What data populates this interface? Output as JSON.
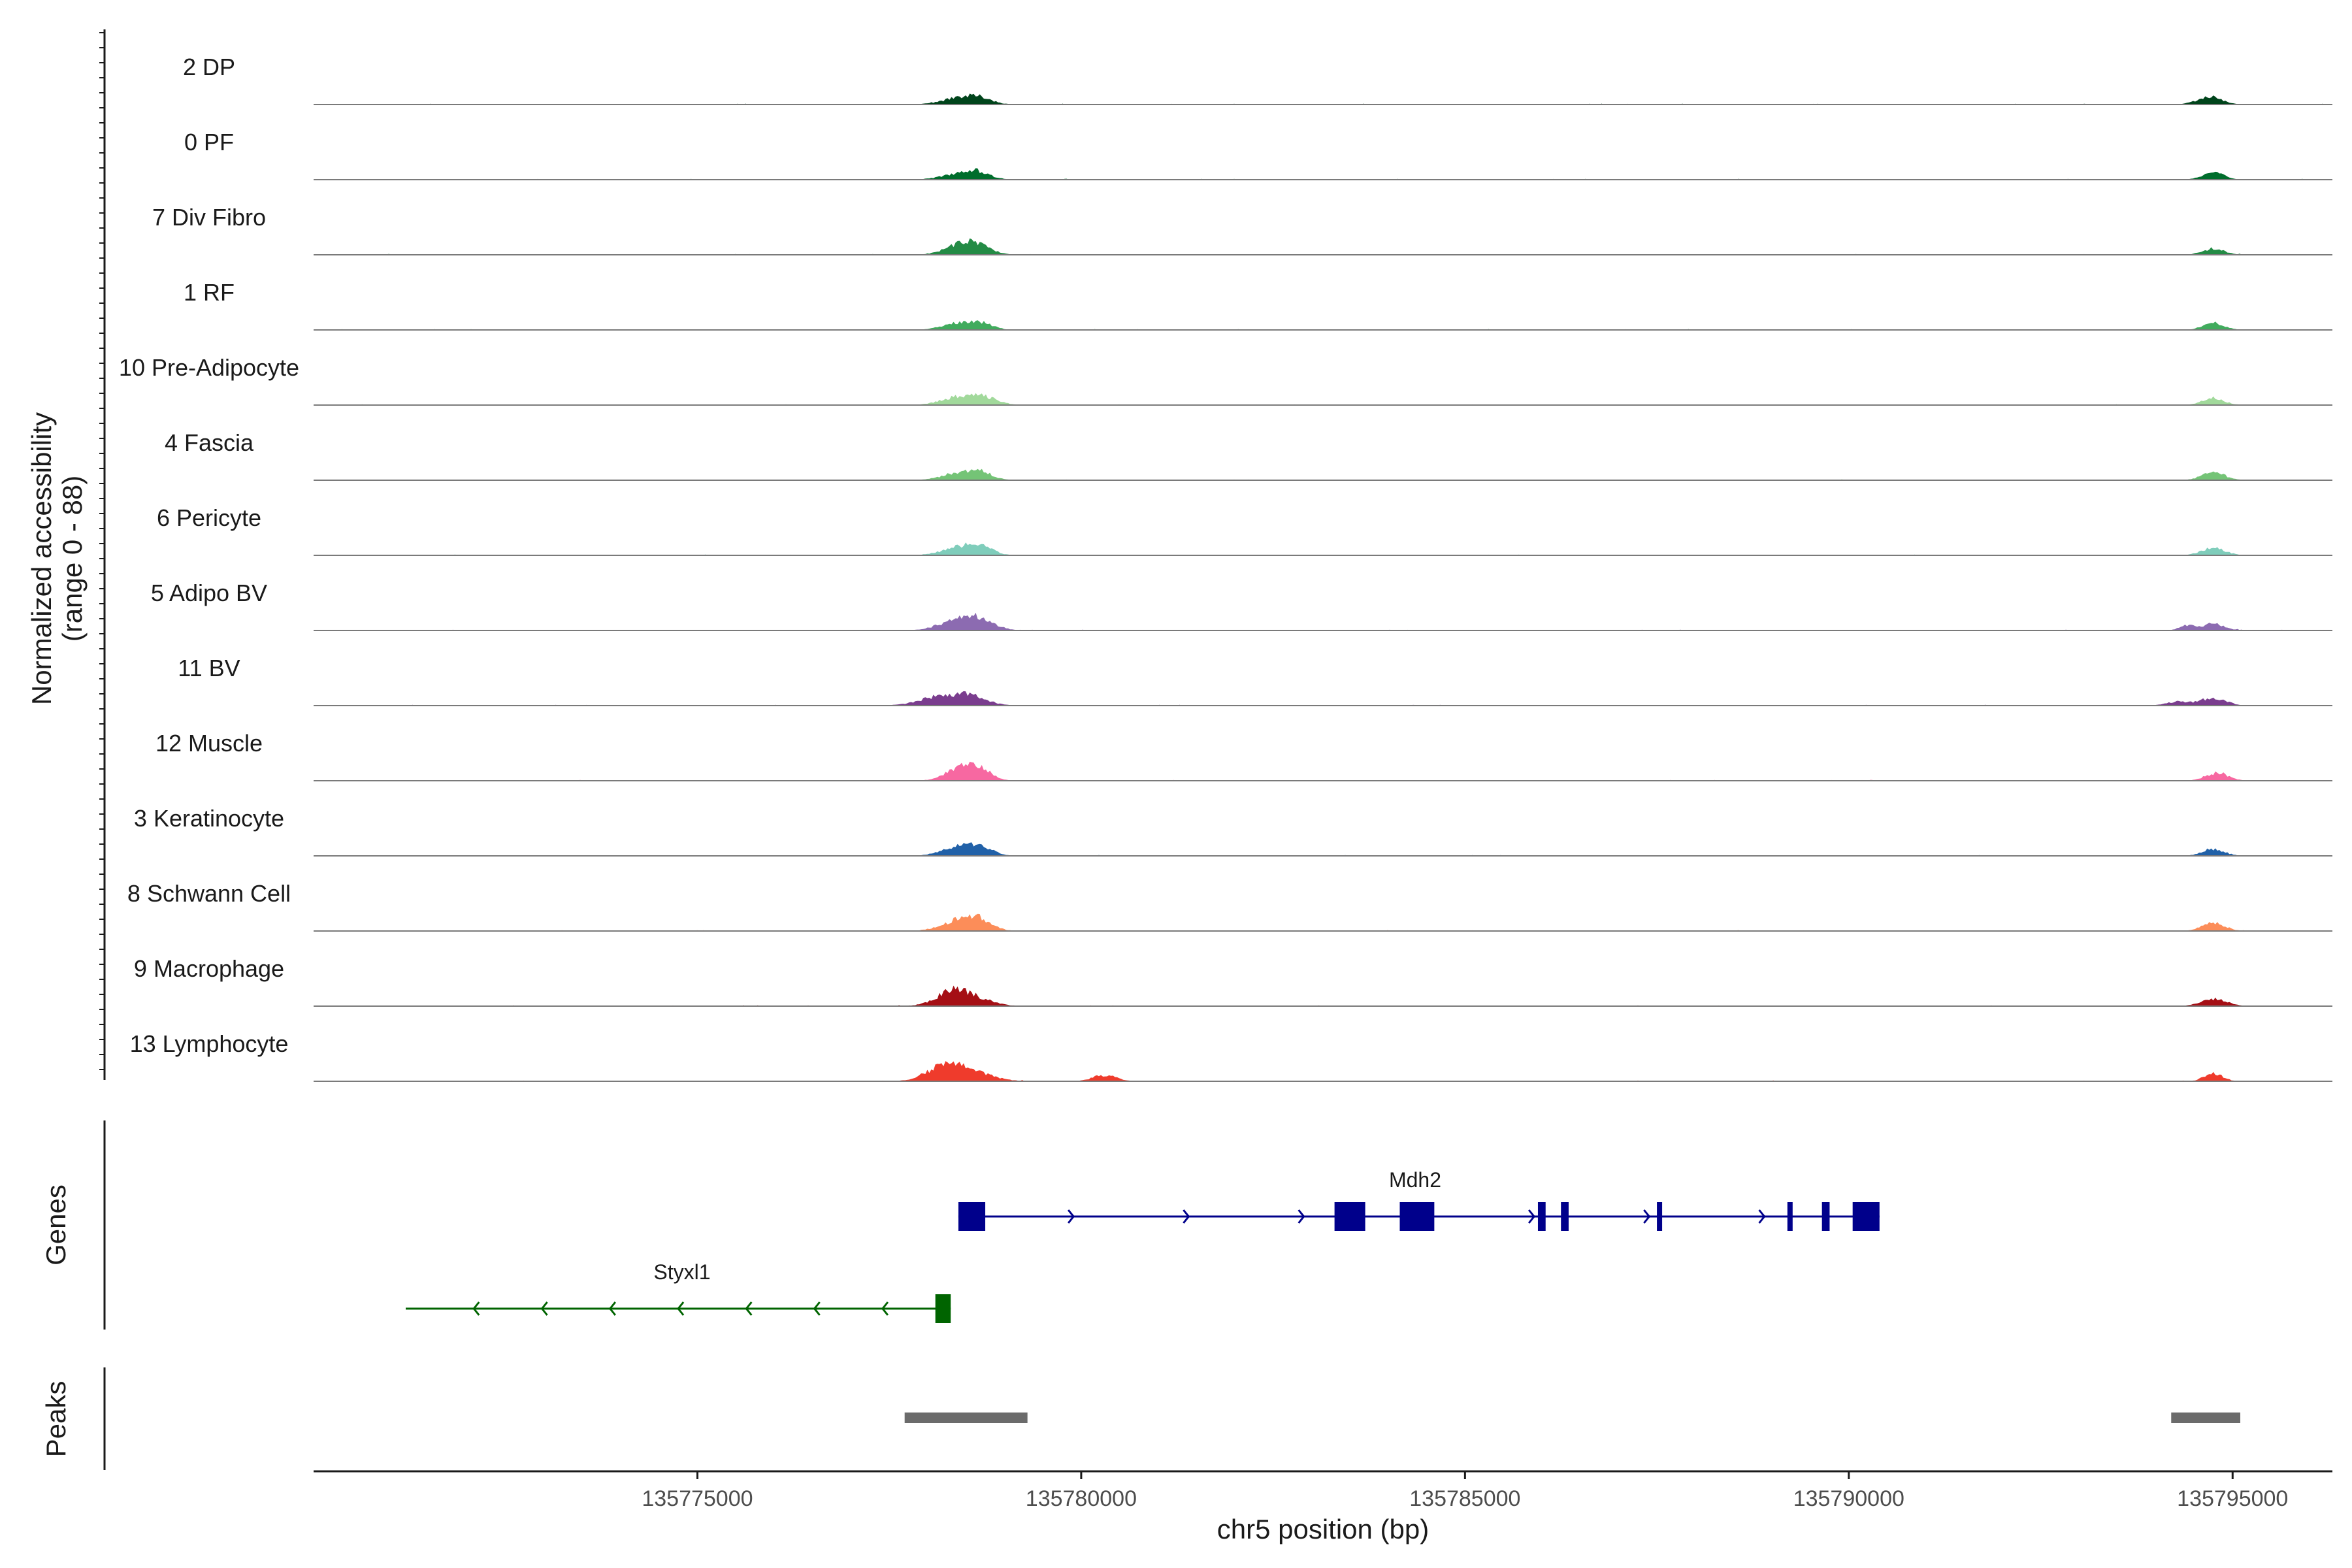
{
  "chart_data": {
    "type": "area",
    "title": "",
    "chromosome": "chr5",
    "xlabel": "chr5 position (bp)",
    "xlim": [
      135770000,
      135796300
    ],
    "xticks": [
      135775000,
      135780000,
      135785000,
      135790000,
      135795000
    ],
    "xtick_labels": [
      "135775000",
      "135780000",
      "135785000",
      "135790000",
      "135795000"
    ],
    "ylabel_line1": "Normalized accessibility",
    "ylabel_line2": "(range 0 - 88)",
    "ylim": [
      0,
      88
    ],
    "series": [
      {
        "name": "2 DP",
        "color": "#00441b",
        "peaks": [
          [
            135778450,
            9,
            240
          ],
          [
            135778700,
            5,
            150
          ],
          [
            135794700,
            10,
            160
          ]
        ]
      },
      {
        "name": "0 PF",
        "color": "#006d2c",
        "peaks": [
          [
            135778450,
            8,
            240
          ],
          [
            135778650,
            6,
            160
          ],
          [
            135794750,
            9,
            140
          ]
        ]
      },
      {
        "name": "7 Div Fibro",
        "color": "#238b45",
        "peaks": [
          [
            135778450,
            12,
            220
          ],
          [
            135778650,
            8,
            180
          ],
          [
            135794750,
            8,
            140
          ]
        ]
      },
      {
        "name": "1 RF",
        "color": "#41ab5d",
        "peaks": [
          [
            135778450,
            9,
            240
          ],
          [
            135778700,
            5,
            150
          ],
          [
            135794750,
            9,
            140
          ]
        ]
      },
      {
        "name": "10 Pre-Adipocyte",
        "color": "#a1d99b",
        "peaks": [
          [
            135778450,
            11,
            250
          ],
          [
            135778750,
            6,
            180
          ],
          [
            135794750,
            9,
            140
          ]
        ]
      },
      {
        "name": "4 Fascia",
        "color": "#74c476",
        "peaks": [
          [
            135778450,
            10,
            240
          ],
          [
            135778700,
            6,
            150
          ],
          [
            135794750,
            10,
            150
          ]
        ]
      },
      {
        "name": "6 Pericyte",
        "color": "#7fcdbb",
        "peaks": [
          [
            135778450,
            11,
            240
          ],
          [
            135778700,
            7,
            150
          ],
          [
            135794750,
            10,
            150
          ]
        ]
      },
      {
        "name": "5 Adipo BV",
        "color": "#8c6bb1",
        "peaks": [
          [
            135778450,
            15,
            260
          ],
          [
            135778700,
            8,
            180
          ],
          [
            135794400,
            6,
            100
          ],
          [
            135794750,
            9,
            140
          ]
        ]
      },
      {
        "name": "11 BV",
        "color": "#7a3d8e",
        "peaks": [
          [
            135778200,
            12,
            280
          ],
          [
            135778600,
            9,
            200
          ],
          [
            135794750,
            10,
            160
          ],
          [
            135794300,
            5,
            150
          ]
        ]
      },
      {
        "name": "12 Muscle",
        "color": "#f768a1",
        "peaks": [
          [
            135778450,
            18,
            200
          ],
          [
            135778700,
            10,
            150
          ],
          [
            135794800,
            10,
            150
          ]
        ]
      },
      {
        "name": "3 Keratinocyte",
        "color": "#2161a8",
        "peaks": [
          [
            135778450,
            12,
            240
          ],
          [
            135778700,
            7,
            150
          ],
          [
            135794750,
            9,
            140
          ]
        ]
      },
      {
        "name": "8 Schwann Cell",
        "color": "#fc8d59",
        "peaks": [
          [
            135778450,
            15,
            240
          ],
          [
            135778700,
            8,
            150
          ],
          [
            135794750,
            10,
            150
          ]
        ]
      },
      {
        "name": "9 Macrophage",
        "color": "#a50f15",
        "peaks": [
          [
            135778450,
            16,
            280
          ],
          [
            135778300,
            8,
            150
          ],
          [
            135794750,
            9,
            170
          ]
        ]
      },
      {
        "name": "13 Lymphocyte",
        "color": "#ef3b2c",
        "peaks": [
          [
            135778450,
            16,
            300
          ],
          [
            135778150,
            10,
            200
          ],
          [
            135780300,
            8,
            150
          ],
          [
            135794750,
            10,
            120
          ]
        ]
      }
    ],
    "genes_panel_label": "Genes",
    "peaks_panel_label": "Peaks",
    "genes": [
      {
        "name": "Mdh2",
        "strand": "+",
        "color": "#00008b",
        "start": 135778400,
        "end": 135790400,
        "exons": [
          [
            135778400,
            135778750
          ],
          [
            135783300,
            135783700
          ],
          [
            135784150,
            135784600
          ],
          [
            135785950,
            135786050
          ],
          [
            135786250,
            135786350
          ],
          [
            135787500,
            135787550
          ],
          [
            135789200,
            135789250
          ],
          [
            135789650,
            135789750
          ],
          [
            135790050,
            135790400
          ]
        ]
      },
      {
        "name": "Styxl1",
        "strand": "-",
        "color": "#006400",
        "start": 135771200,
        "end": 135778300,
        "exons": [
          [
            135778100,
            135778300
          ]
        ]
      }
    ],
    "peaks": [
      [
        135777700,
        135779300
      ],
      [
        135794200,
        135795100
      ]
    ],
    "peak_color": "#6b6b6b"
  }
}
